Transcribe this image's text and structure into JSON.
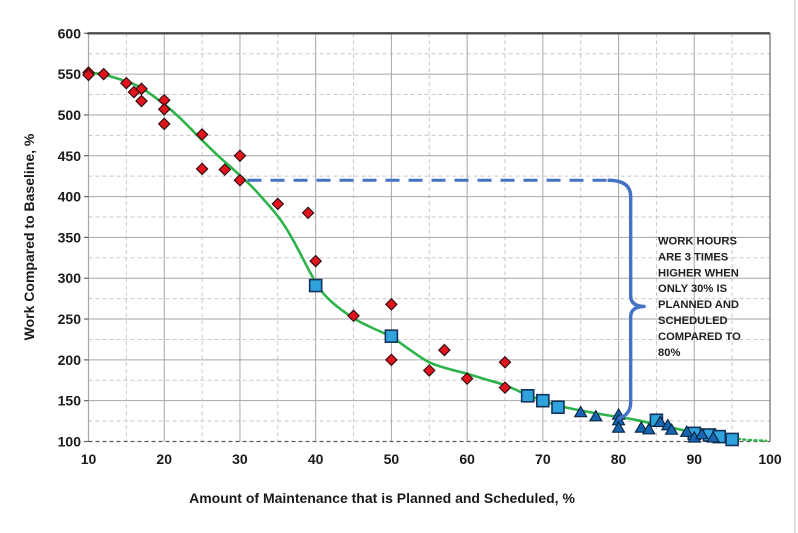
{
  "chart_data": {
    "type": "scatter",
    "title": "",
    "xlabel": "Amount of Maintenance that is Planned and Scheduled, %",
    "ylabel": "Work Compared to Baseline, %",
    "xlim": [
      10,
      100
    ],
    "ylim": [
      100,
      600
    ],
    "x_ticks": [
      10,
      20,
      30,
      40,
      50,
      60,
      70,
      80,
      90,
      100
    ],
    "y_ticks": [
      100,
      150,
      200,
      250,
      300,
      350,
      400,
      450,
      500,
      550,
      600
    ],
    "x_minor_step": 5,
    "y_minor_step": 25,
    "grid": "major solid gray, minor dashed light gray, bottom axis dashed",
    "legend": "none",
    "series": [
      {
        "name": "red-diamonds",
        "marker": "diamond",
        "fill": "#e0151d",
        "edge": "#2b0b0d",
        "points": [
          [
            10,
            552
          ],
          [
            10,
            549
          ],
          [
            12,
            550
          ],
          [
            15,
            539
          ],
          [
            16,
            528
          ],
          [
            17,
            532
          ],
          [
            17,
            517
          ],
          [
            20,
            518
          ],
          [
            20,
            507
          ],
          [
            20,
            489
          ],
          [
            25,
            476
          ],
          [
            25,
            434
          ],
          [
            28,
            433
          ],
          [
            30,
            450
          ],
          [
            30,
            420
          ],
          [
            35,
            391
          ],
          [
            39,
            380
          ],
          [
            40,
            321
          ],
          [
            45,
            254
          ],
          [
            50,
            268
          ],
          [
            50,
            200
          ],
          [
            55,
            187
          ],
          [
            57,
            212
          ],
          [
            60,
            177
          ],
          [
            65,
            197
          ],
          [
            65,
            166
          ]
        ]
      },
      {
        "name": "blue-squares",
        "marker": "square",
        "fill": "#2fa3dc",
        "edge": "#13325a",
        "points": [
          [
            40,
            291
          ],
          [
            50,
            229
          ],
          [
            68,
            156
          ],
          [
            70,
            150
          ],
          [
            72,
            142
          ],
          [
            85,
            126
          ],
          [
            90,
            110
          ],
          [
            92,
            108
          ],
          [
            93.3,
            106
          ],
          [
            95,
            102.5
          ]
        ]
      },
      {
        "name": "blue-triangles",
        "marker": "triangle",
        "fill": "#1565b1",
        "edge": "#0a2340",
        "points": [
          [
            75,
            136
          ],
          [
            77,
            131
          ],
          [
            80,
            133
          ],
          [
            80,
            126
          ],
          [
            80,
            117
          ],
          [
            83,
            117
          ],
          [
            84,
            115
          ],
          [
            85.5,
            124
          ],
          [
            86.5,
            120
          ],
          [
            87,
            114.5
          ],
          [
            89,
            112
          ],
          [
            90,
            105
          ],
          [
            91,
            109
          ],
          [
            92.5,
            105
          ]
        ]
      },
      {
        "name": "green-trend-line",
        "marker": "none",
        "line_color": "#2db34a",
        "points": [
          [
            10,
            551
          ],
          [
            11.5,
            550.5
          ],
          [
            13,
            547
          ],
          [
            15,
            541
          ],
          [
            17,
            533
          ],
          [
            20,
            513
          ],
          [
            22,
            497
          ],
          [
            25,
            469
          ],
          [
            27,
            451
          ],
          [
            30,
            426
          ],
          [
            32,
            408
          ],
          [
            35,
            376
          ],
          [
            37,
            347
          ],
          [
            40,
            295
          ],
          [
            42,
            272
          ],
          [
            45,
            251
          ],
          [
            47.5,
            239
          ],
          [
            50,
            228
          ],
          [
            52.5,
            212
          ],
          [
            55,
            197
          ],
          [
            57.5,
            189
          ],
          [
            60,
            183
          ],
          [
            62.5,
            176
          ],
          [
            65,
            169
          ],
          [
            68,
            157
          ],
          [
            70,
            150
          ],
          [
            72,
            144
          ],
          [
            75,
            138
          ],
          [
            78,
            133
          ],
          [
            80,
            130
          ],
          [
            82,
            127
          ],
          [
            85,
            121
          ],
          [
            88,
            115
          ],
          [
            90,
            111
          ],
          [
            92,
            108
          ],
          [
            95,
            104
          ]
        ],
        "dotted_tail": [
          [
            95,
            104
          ],
          [
            96.5,
            102.5
          ],
          [
            98,
            101.5
          ],
          [
            99.5,
            101
          ]
        ]
      }
    ],
    "annotation": {
      "dashed_line": {
        "y": 420,
        "x_start": 31,
        "x_end": 79
      },
      "brace": {
        "y_top": 420,
        "y_bottom": 128.5,
        "at_x": 81.6
      },
      "text": "WORK HOURS ARE 3 TIMES HIGHER WHEN ONLY 30% IS PLANNED AND SCHEDULED COMPARED TO 80%",
      "lines": [
        "WORK HOURS",
        "ARE 3 TIMES",
        "HIGHER WHEN",
        "ONLY 30% IS",
        "PLANNED AND",
        "SCHEDULED",
        "COMPARED TO",
        "80%"
      ],
      "color": "#4472c4",
      "text_color": "#1f1f1f"
    },
    "colors": {
      "grid_major": "#a6a6a6",
      "grid_minor": "#c8c8c8",
      "border_top": "#4d4d4d",
      "border_right": "#7f7f7f",
      "axis_left": "#a6a6a6",
      "baseline_dashed": "#595959",
      "tick_text": "#1a1a1a"
    }
  }
}
